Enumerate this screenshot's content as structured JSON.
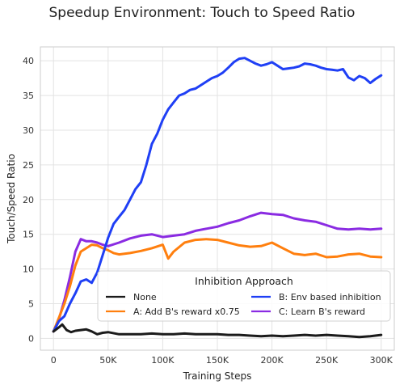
{
  "chart_data": {
    "type": "line",
    "title": "Speedup Environment: Touch to Speed Ratio",
    "xlabel": "Training Steps",
    "ylabel": "Touch/Speed Ratio",
    "xlim": [
      -12000,
      312000
    ],
    "ylim": [
      -1.7,
      42
    ],
    "xticks": [
      0,
      50000,
      100000,
      150000,
      200000,
      250000,
      300000
    ],
    "xtick_labels": [
      "0",
      "50K",
      "100K",
      "150K",
      "200K",
      "250K",
      "300K"
    ],
    "yticks": [
      0,
      5,
      10,
      15,
      20,
      25,
      30,
      35,
      40
    ],
    "ytick_labels": [
      "0",
      "5",
      "10",
      "15",
      "20",
      "25",
      "30",
      "35",
      "40"
    ],
    "grid": true,
    "legend": {
      "title": "Inhibition Approach",
      "placement": "lower-right",
      "columns": 2
    },
    "series": [
      {
        "name": "None",
        "color": "#1b1b1b",
        "x": [
          0,
          5000,
          8000,
          12000,
          16000,
          20000,
          25000,
          30000,
          35000,
          40000,
          45000,
          50000,
          60000,
          70000,
          80000,
          90000,
          100000,
          110000,
          120000,
          130000,
          140000,
          150000,
          160000,
          170000,
          180000,
          190000,
          200000,
          210000,
          220000,
          230000,
          240000,
          250000,
          260000,
          270000,
          280000,
          290000,
          300000
        ],
        "y": [
          1.0,
          1.6,
          2.0,
          1.2,
          0.9,
          1.1,
          1.2,
          1.3,
          1.0,
          0.6,
          0.8,
          0.9,
          0.6,
          0.6,
          0.6,
          0.7,
          0.6,
          0.6,
          0.7,
          0.6,
          0.6,
          0.6,
          0.5,
          0.5,
          0.4,
          0.3,
          0.4,
          0.3,
          0.4,
          0.5,
          0.4,
          0.5,
          0.4,
          0.3,
          0.2,
          0.3,
          0.5
        ]
      },
      {
        "name": "A: Add B's reward x0.75",
        "color": "#ff7f0e",
        "x": [
          0,
          5000,
          10000,
          15000,
          20000,
          25000,
          30000,
          35000,
          40000,
          45000,
          50000,
          55000,
          60000,
          70000,
          80000,
          90000,
          100000,
          105000,
          110000,
          120000,
          130000,
          140000,
          150000,
          160000,
          170000,
          180000,
          190000,
          200000,
          210000,
          220000,
          230000,
          240000,
          250000,
          260000,
          270000,
          280000,
          290000,
          300000
        ],
        "y": [
          1.0,
          3.0,
          5.0,
          7.5,
          10.5,
          12.5,
          13.0,
          13.5,
          13.4,
          13.0,
          12.7,
          12.3,
          12.1,
          12.3,
          12.6,
          13.0,
          13.5,
          11.5,
          12.5,
          13.8,
          14.2,
          14.3,
          14.2,
          13.8,
          13.4,
          13.2,
          13.3,
          13.8,
          13.0,
          12.2,
          12.0,
          12.2,
          11.7,
          11.8,
          12.1,
          12.2,
          11.8,
          11.7
        ]
      },
      {
        "name": "B: Env based inhibition",
        "color": "#1f3ff5",
        "x": [
          0,
          5000,
          10000,
          15000,
          20000,
          25000,
          30000,
          35000,
          40000,
          45000,
          50000,
          55000,
          60000,
          65000,
          70000,
          75000,
          80000,
          85000,
          90000,
          95000,
          100000,
          105000,
          110000,
          115000,
          120000,
          125000,
          130000,
          135000,
          140000,
          145000,
          150000,
          155000,
          160000,
          165000,
          170000,
          175000,
          180000,
          185000,
          190000,
          195000,
          200000,
          205000,
          210000,
          215000,
          220000,
          225000,
          230000,
          235000,
          240000,
          245000,
          250000,
          255000,
          260000,
          265000,
          270000,
          275000,
          280000,
          285000,
          290000,
          295000,
          300000
        ],
        "y": [
          1.0,
          2.5,
          3.2,
          5.0,
          6.5,
          8.2,
          8.5,
          8.0,
          9.5,
          12.0,
          14.5,
          16.5,
          17.5,
          18.5,
          20.0,
          21.5,
          22.5,
          25.0,
          28.0,
          29.5,
          31.5,
          33.0,
          34.0,
          35.0,
          35.3,
          35.8,
          36.0,
          36.5,
          37.0,
          37.5,
          37.8,
          38.3,
          39.0,
          39.8,
          40.3,
          40.4,
          40.0,
          39.6,
          39.3,
          39.5,
          39.8,
          39.3,
          38.8,
          38.9,
          39.0,
          39.2,
          39.6,
          39.5,
          39.3,
          39.0,
          38.8,
          38.7,
          38.6,
          38.8,
          37.6,
          37.2,
          37.8,
          37.5,
          36.8,
          37.4,
          37.9
        ]
      },
      {
        "name": "C: Learn B's reward",
        "color": "#8a2be2",
        "x": [
          0,
          5000,
          10000,
          15000,
          20000,
          25000,
          30000,
          35000,
          40000,
          45000,
          50000,
          60000,
          70000,
          80000,
          90000,
          100000,
          110000,
          120000,
          130000,
          140000,
          150000,
          160000,
          170000,
          180000,
          190000,
          200000,
          210000,
          220000,
          230000,
          240000,
          250000,
          260000,
          270000,
          280000,
          290000,
          300000
        ],
        "y": [
          1.0,
          2.8,
          5.5,
          8.8,
          12.5,
          14.3,
          14.0,
          14.0,
          13.8,
          13.5,
          13.3,
          13.8,
          14.4,
          14.8,
          15.0,
          14.6,
          14.8,
          15.0,
          15.5,
          15.8,
          16.1,
          16.6,
          17.0,
          17.6,
          18.1,
          17.9,
          17.8,
          17.3,
          17.0,
          16.8,
          16.3,
          15.8,
          15.7,
          15.8,
          15.7,
          15.8
        ]
      }
    ]
  }
}
